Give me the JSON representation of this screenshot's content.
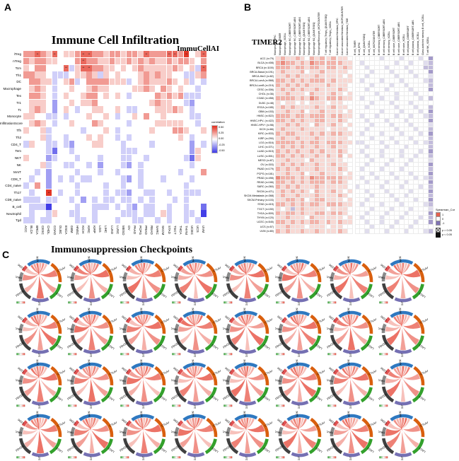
{
  "panel_labels": {
    "a": "A",
    "b": "B",
    "c": "C"
  },
  "chart_data": [
    {
      "id": "A",
      "type": "heatmap",
      "title": "Immune Cell Infiltration",
      "subtitle": "ImmuCellAI",
      "legend": {
        "title": "correlation",
        "ticks": [
          "0.50",
          "0.25",
          "0.00",
          "-0.25",
          "-0.50"
        ],
        "max_color": "#e22f1f",
        "min_color": "#3c38e6"
      },
      "rows": [
        "iTreg",
        "nTreg",
        "Tcm",
        "Th1",
        "DC",
        "Macrophage",
        "Tex",
        "Tr1",
        "Tc",
        "Monocyte",
        "InfiltrationScore",
        "Tfh",
        "Th2",
        "CD4_T",
        "Tem",
        "NKT",
        "NK",
        "MAIT",
        "CD8_T",
        "CD4_naive",
        "Th17",
        "CD8_naive",
        "B_cell",
        "Neutrophil",
        "Tgd"
      ],
      "categories": [
        "ACC",
        "BLCA",
        "BRCA",
        "CESC",
        "CHOL",
        "COAD",
        "DLBC",
        "ESCA",
        "GBM",
        "HNSC",
        "KICH",
        "KIRC",
        "KIRP",
        "LGG",
        "LIHC",
        "LUAD",
        "LUSC",
        "MESO",
        "OV",
        "PAAD",
        "PCPG",
        "PRAD",
        "READ",
        "SARC",
        "SKCM",
        "STAD",
        "TGCT",
        "THCA",
        "THYM",
        "UCEC",
        "UCS",
        "UVM"
      ],
      "value_encoding": {
        "chars": "012345678",
        "values": [
          -0.6,
          -0.45,
          -0.3,
          -0.15,
          0,
          0.15,
          0.3,
          0.45,
          0.6
        ]
      },
      "values": [
        "66765745567766566566576667768457",
        "65665544467665565565656556566546",
        "54664447357766554545655555654537",
        "66554333455653545444565655443356",
        "46655345634666655534565556545343",
        "45654344544565544445565465454434",
        "46654345445664545434444656563334",
        "45554244545564444444445655443244",
        "45654245434455445433444555654344",
        "55443343444544543445464454444334",
        "45654344544465444434444555554434",
        "54453444443444543444445444665445",
        "44453443444545443434444444454344",
        "35443343244455444344443444444243",
        "44443144344444444333444444444254",
        "54442344434443444334434444443154",
        "44453443344342444324344444444344",
        "44342444434443443444344444434446",
        "43442434343344444324344434444344",
        "34642444434444344344344444443444",
        "43448434434444343324433443443334",
        "33343344342434334334343444343444",
        "43330444434433343432433443443441",
        "43443544334434444333433453443340",
        "33433444433434443443344343443434"
      ]
    },
    {
      "id": "B",
      "type": "heatmap",
      "title": "TIMER2",
      "legend": {
        "title": "Spearman_Cor",
        "ticks": [
          "1",
          "0",
          "-1"
        ],
        "sig": [
          "p > 0.05",
          "p < 0.05"
        ],
        "max_color": "#e4604e",
        "min_color": "#8073b5"
      },
      "categories": [
        "Macrophage_EPIC",
        "Macrophage_TIMER",
        "Macrophage_XCELL",
        "Macrophage M0_CIBERSORT",
        "Macrophage M0_CIBERSORT-ABS",
        "Macrophage M1_CIBERSORT-ABS",
        "Macrophage M1_QUANTISEQ",
        "Macrophage M2_CIBERSORT-ABS",
        "Macrophage M2_QUANTISEQ",
        "Macrophage/Monocyte_MCPCOUNTER",
        "T cell regulatory (Tregs)_QUANTISEQ",
        "T cell regulatory (Tregs)_XCELL",
        "Cancer associated fibroblast_EPIC",
        "Cancer associated fibroblast_MCPCOUNTER",
        "Cancer associated fibroblast_TIDE",
        "B cell_TIMER",
        "B cell_EPIC",
        "B cell_QUANTISEQ",
        "B cell_XCELL",
        "B cell_MCPCOUNTER",
        "B cell memory_CIBERSORT",
        "B cell memory_CIBERSORT-ABS",
        "B cell memory_XCELL",
        "B cell naive_CIBERSORT",
        "B cell naive_CIBERSORT-ABS",
        "B cell naive_XCELL",
        "B cell plasma_CIBERSORT",
        "B cell plasma_CIBERSORT-ABS",
        "B cell plasma_XCELL",
        "Class-switched memory B cell_XCELL",
        "T cell NK_XCELL"
      ],
      "rows": [
        "ACC (n=79)",
        "BLCA (n=408)",
        "BRCA (n=1100)",
        "BRCA-Basal (n=191)",
        "BRCA-Her2 (n=82)",
        "BRCA-LumA (n=568)",
        "BRCA-LumB (n=219)",
        "CESC (n=306)",
        "CHOL (n=36)",
        "COAD (n=458)",
        "DLBC (n=48)",
        "ESCA (n=185)",
        "GBM (n=153)",
        "HNSC (n=522)",
        "HNSC-HPV- (n=422)",
        "HNSC-HPV+ (n=98)",
        "KICH (n=66)",
        "KIRC (n=533)",
        "KIRP (n=290)",
        "LGG (n=516)",
        "LIHC (n=371)",
        "LUAD (n=515)",
        "LUSC (n=501)",
        "MESO (n=87)",
        "OV (n=303)",
        "PAAD (n=179)",
        "PCPG (n=181)",
        "PRAD (n=498)",
        "READ (n=166)",
        "SARC (n=260)",
        "SKCM (n=471)",
        "SKCM-Metastasis (n=368)",
        "SKCM-Primary (n=103)",
        "STAD (n=415)",
        "TGCT (n=150)",
        "THCA (n=509)",
        "THYM (n=120)",
        "UCEC (n=545)",
        "UCS (n=57)",
        "UVM (n=80)"
      ],
      "value_encoding": {
        "chars": "012345678",
        "values": [
          -0.6,
          -0.45,
          -0.3,
          -0.15,
          0,
          0.15,
          0.3,
          0.45,
          0.6
        ]
      },
      "values": [
        "5655654656565544444434443444341",
        "6766565766666554344444434434432",
        "6665665665665654434443444344422",
        "5655564556555544443444344434441",
        "5565655565555454434444434443443",
        "6656565666565554344434443444432",
        "6565656555655544443444344344442",
        "5656565565556544434443444434441",
        "5565554655565454444344434443444",
        "6666565765666554344434434444342",
        "5455454555455444443444344434444",
        "5656555565565544434444434443442",
        "5565564556555454444434443444341",
        "6665665666566554344344434434432",
        "6656565566556544434443444344441",
        "5565655465565454443444344434443",
        "5655565555455544434444434443442",
        "6566555656566554344434443444341",
        "5655655565555544443444344434442",
        "6666565665666553344434434443432",
        "5656565565565544434443444344442",
        "6565655656556544344434443444341",
        "6656565565656454434434443443442",
        "5565554655555444443444344434443",
        "5656565565565544434443444344441",
        "6565655565556544344434443444442",
        "5565564556555454443444344434441",
        "7666565766666554344344434443432",
        "6656565666566544434443444344441",
        "6565655565555543444434443444342",
        "5656565465565454434443444434441",
        "5655655565556544443444344344442",
        "5566564566555454434444434443441",
        "6656565665666554344434443444432",
        "5452565555455544443444344434443",
        "6566565566566544434443444344441",
        "5565554655555454344434443444342",
        "6656565665656554434434434443441",
        "5565554555455444443444344434444",
        "6565565565556544434443444344432"
      ]
    },
    {
      "id": "C",
      "type": "chord-grid",
      "title": "Immunosuppression Checkpoints",
      "grid": {
        "rows": 4,
        "cols": 8
      },
      "sectors": [
        {
          "name": "ARNTL2",
          "color": "#2e78c0",
          "a0": -38,
          "a1": 28
        },
        {
          "name": "CTLA4",
          "color": "#d95f0e",
          "a0": 34,
          "a1": 94
        },
        {
          "name": "LAG3",
          "color": "#33a02c",
          "a0": 100,
          "a1": 150
        },
        {
          "name": "TIGIT",
          "color": "#7570b3",
          "a0": 156,
          "a1": 204
        },
        {
          "name": "PDCD1",
          "color": "#404040",
          "a0": 210,
          "a1": 262
        },
        {
          "name": "HAVCR2",
          "color": "#8a8a8a",
          "a0": 268,
          "a1": 294
        },
        {
          "name": "CD96",
          "color": "#e05252",
          "a0": 300,
          "a1": 316
        }
      ],
      "chord_color": "#e74c3c",
      "scale_legend": {
        "low_color": "#2ca02c",
        "mid_color": "#ffffff",
        "high_color": "#e74c3c"
      },
      "plots": [
        "758463",
        "846357",
        "765834",
        "683745",
        "857364",
        "746583",
        "573846",
        "864735",
        "785634",
        "657483",
        "864573",
        "746358",
        "583764",
        "875463",
        "648537",
        "765843",
        "847563",
        "658374",
        "736485",
        "845736",
        "657834",
        "784563",
        "846375",
        "563847",
        "758436",
        "684573",
        "847365",
        "736584",
        "865734",
        "574836",
        "786453",
        "645783"
      ]
    }
  ]
}
